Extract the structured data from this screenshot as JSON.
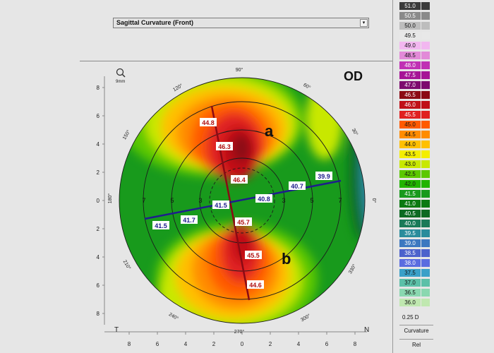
{
  "dropdown": {
    "selected": "Sagittal Curvature (Front)",
    "arrow_glyph": "▾"
  },
  "map": {
    "eye": "OD",
    "zoom_icon": "magnifier-icon",
    "zoom_label": "9mm",
    "corner_left": "T",
    "corner_right": "N",
    "region_a": "a",
    "region_b": "b",
    "y_axis_ticks": [
      "8",
      "6",
      "4",
      "2",
      "0",
      "2",
      "4",
      "6",
      "8"
    ],
    "x_axis_ticks": [
      "8",
      "6",
      "4",
      "2",
      "0",
      "2",
      "4",
      "6",
      "8"
    ],
    "angle_labels": [
      "90°",
      "60°",
      "30°",
      "0°",
      "330°",
      "300°",
      "270°",
      "240°",
      "210°",
      "180°",
      "150°",
      "120°"
    ],
    "ring_labels": [
      "7",
      "5",
      "3",
      "3",
      "5",
      "7"
    ],
    "readings_red": [
      "44.8",
      "46.3",
      "46.4",
      "45.7",
      "45.5",
      "44.6"
    ],
    "readings_blue": [
      "40.8",
      "40.7",
      "39.9",
      "41.5",
      "41.7",
      "41.5"
    ]
  },
  "scale": {
    "values": [
      "51.0",
      "50.5",
      "50.0",
      "49.5",
      "49.0",
      "48.5",
      "48.0",
      "47.5",
      "47.0",
      "46.5",
      "46.0",
      "45.5",
      "45.0",
      "44.5",
      "44.0",
      "43.5",
      "43.0",
      "42.5",
      "42.0",
      "41.5",
      "41.0",
      "40.5",
      "40.0",
      "39.5",
      "39.0",
      "38.5",
      "38.0",
      "37.5",
      "37.0",
      "36.5",
      "36.0"
    ],
    "bg_colors": [
      "#3a3a3a",
      "#8a8a8a",
      "#bdbdbd",
      "#e8e8e8",
      "#f2b7f0",
      "#e28ad8",
      "#c030b4",
      "#a61496",
      "#7d0a6e",
      "#8b0a14",
      "#c01018",
      "#e02020",
      "#ff5a00",
      "#ff8c00",
      "#ffc000",
      "#f4ee00",
      "#c8e800",
      "#5cc800",
      "#22b400",
      "#189a1c",
      "#0c7a12",
      "#0c6a22",
      "#1a7a58",
      "#2a8c9c",
      "#3c78c0",
      "#4c62cc",
      "#5a6ce0",
      "#3aa0c8",
      "#5cc0a8",
      "#8ad8b0",
      "#c0e8b0"
    ],
    "text_colors": [
      "#ffffff",
      "#ffffff",
      "#111111",
      "#111111",
      "#111111",
      "#111111",
      "#ffffff",
      "#ffffff",
      "#ffffff",
      "#ffffff",
      "#ffffff",
      "#ffffff",
      "#111111",
      "#111111",
      "#111111",
      "#111111",
      "#111111",
      "#111111",
      "#111111",
      "#ffffff",
      "#ffffff",
      "#ffffff",
      "#ffffff",
      "#ffffff",
      "#ffffff",
      "#ffffff",
      "#ffffff",
      "#111111",
      "#111111",
      "#111111",
      "#111111"
    ],
    "step": "0.25 D",
    "mode_label": "Curvature",
    "mode_value": "Rel"
  }
}
